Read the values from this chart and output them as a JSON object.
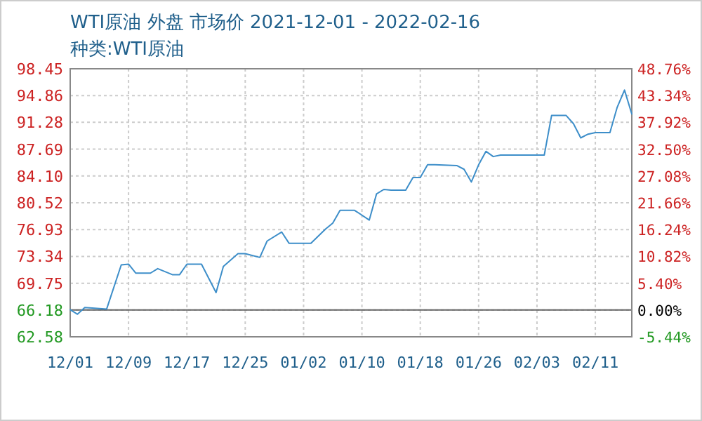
{
  "chart_data": {
    "type": "line",
    "title": "WTI原油 外盘 市场价 2021-12-01 - 2022-02-16",
    "subtitle": "种类:WTI原油",
    "x": [
      "2021-12-01",
      "2021-12-02",
      "2021-12-03",
      "2021-12-06",
      "2021-12-08",
      "2021-12-09",
      "2021-12-10",
      "2021-12-12",
      "2021-12-13",
      "2021-12-15",
      "2021-12-16",
      "2021-12-17",
      "2021-12-19",
      "2021-12-21",
      "2021-12-22",
      "2021-12-24",
      "2021-12-25",
      "2021-12-27",
      "2021-12-28",
      "2021-12-30",
      "2021-12-31",
      "2022-01-03",
      "2022-01-05",
      "2022-01-06",
      "2022-01-07",
      "2022-01-09",
      "2022-01-11",
      "2022-01-12",
      "2022-01-13",
      "2022-01-14",
      "2022-01-16",
      "2022-01-17",
      "2022-01-18",
      "2022-01-19",
      "2022-01-20",
      "2022-01-23",
      "2022-01-24",
      "2022-01-25",
      "2022-01-26",
      "2022-01-27",
      "2022-01-28",
      "2022-01-29",
      "2022-02-04",
      "2022-02-05",
      "2022-02-07",
      "2022-02-08",
      "2022-02-09",
      "2022-02-10",
      "2022-02-11",
      "2022-02-13",
      "2022-02-14",
      "2022-02-15",
      "2022-02-16"
    ],
    "series": [
      {
        "color": "#3d8ec9",
        "values": [
          66.2,
          65.6,
          66.5,
          66.3,
          72.2,
          72.3,
          71.1,
          71.1,
          71.7,
          70.9,
          70.9,
          72.3,
          72.3,
          68.5,
          72.0,
          73.7,
          73.7,
          73.2,
          75.4,
          76.6,
          75.1,
          75.1,
          77.0,
          77.8,
          79.5,
          79.5,
          78.2,
          81.7,
          82.3,
          82.2,
          82.2,
          83.9,
          83.9,
          85.6,
          85.6,
          85.5,
          85.0,
          83.3,
          85.6,
          87.4,
          86.7,
          86.9,
          86.9,
          92.2,
          92.2,
          91.1,
          89.2,
          89.7,
          89.9,
          89.9,
          93.3,
          95.6,
          92.4
        ]
      }
    ],
    "xlim": [
      "2021-12-01",
      "2022-02-16"
    ],
    "xticks": [
      {
        "value": "2021-12-01",
        "label": "12/01"
      },
      {
        "value": "2021-12-09",
        "label": "12/09"
      },
      {
        "value": "2021-12-17",
        "label": "12/17"
      },
      {
        "value": "2021-12-25",
        "label": "12/25"
      },
      {
        "value": "2022-01-02",
        "label": "01/02"
      },
      {
        "value": "2022-01-10",
        "label": "01/10"
      },
      {
        "value": "2022-01-18",
        "label": "01/18"
      },
      {
        "value": "2022-01-26",
        "label": "01/26"
      },
      {
        "value": "2022-02-03",
        "label": "02/03"
      },
      {
        "value": "2022-02-11",
        "label": "02/11"
      }
    ],
    "ylim": [
      62.58,
      98.45
    ],
    "yticks": [
      62.58,
      66.18,
      69.75,
      73.34,
      76.93,
      80.52,
      {
        "value": 84.1,
        "label": "84.10"
      },
      87.69,
      91.28,
      94.86,
      98.45
    ],
    "y2lim": [
      -5.44,
      48.76
    ],
    "y2ticks": [
      {
        "value": -5.44,
        "label": "-5.44%"
      },
      {
        "value": 0,
        "label": "0.00%"
      },
      {
        "value": 5.4,
        "label": "5.40%"
      },
      {
        "value": 10.82,
        "label": "10.82%"
      },
      {
        "value": 16.24,
        "label": "16.24%"
      },
      {
        "value": 21.66,
        "label": "21.66%"
      },
      {
        "value": 27.08,
        "label": "27.08%"
      },
      {
        "value": 32.5,
        "label": "32.50%"
      },
      {
        "value": 37.92,
        "label": "37.92%"
      },
      {
        "value": 43.34,
        "label": "43.34%"
      },
      {
        "value": 48.76,
        "label": "48.76%"
      }
    ],
    "ref_lines": [
      {
        "axis": "y2",
        "value": 0,
        "color": "#666666"
      }
    ],
    "grid": true,
    "marker": "none",
    "line_style": "solid"
  }
}
